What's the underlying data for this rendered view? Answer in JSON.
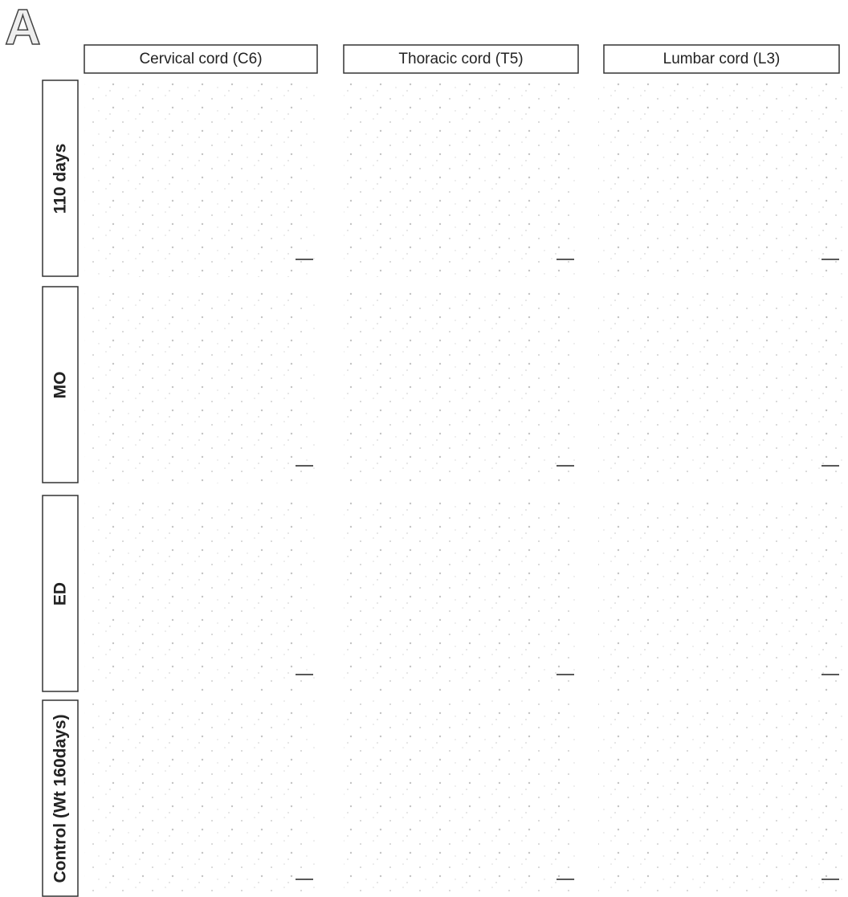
{
  "panel_label": "A",
  "columns": [
    "Cervical cord (C6)",
    "Thoracic cord (T5)",
    "Lumbar cord (L3)"
  ],
  "rows": [
    "110 days",
    "MO",
    "ED",
    "Control (Wt 160days)"
  ]
}
